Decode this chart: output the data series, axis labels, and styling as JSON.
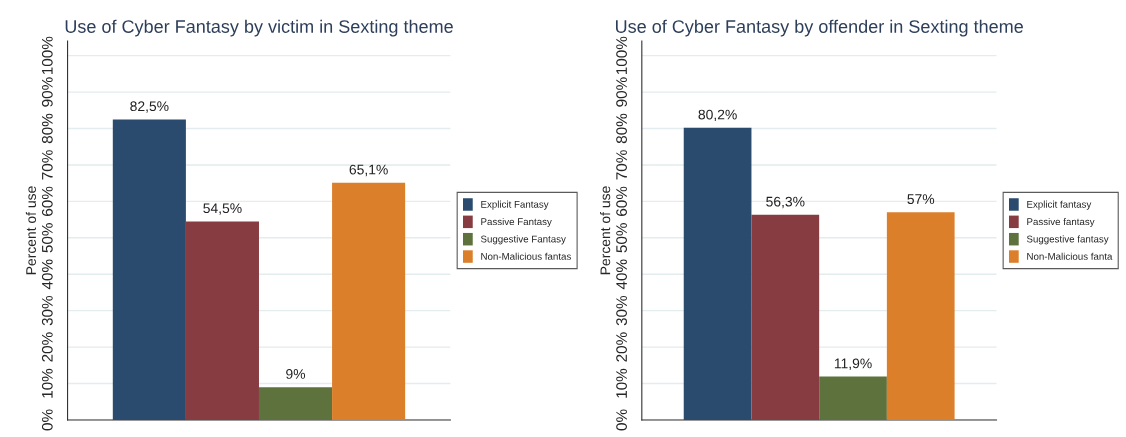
{
  "chart_data": [
    {
      "type": "bar",
      "title": "Use of Cyber Fantasy by victim in Sexting theme",
      "ylabel": "Percent of use",
      "categories": [
        null
      ],
      "series": [
        {
          "name": "Explicit Fantasy",
          "color": "#2a4a6e",
          "values": [
            82.5
          ],
          "value_labels": [
            "82,5%"
          ]
        },
        {
          "name": "Passive Fantasy",
          "color": "#873c41",
          "values": [
            54.5
          ],
          "value_labels": [
            "54,5%"
          ]
        },
        {
          "name": "Suggestive Fantasy",
          "color": "#5e723d",
          "values": [
            9
          ],
          "value_labels": [
            "9%"
          ]
        },
        {
          "name": "Non-Malicious fantas",
          "color": "#db7f2b",
          "values": [
            65.1
          ],
          "value_labels": [
            "65,1%"
          ]
        }
      ],
      "ylim": [
        0,
        104
      ],
      "yticks": [
        {
          "value": 0,
          "label": "0%"
        },
        {
          "value": 10,
          "label": "10%"
        },
        {
          "value": 20,
          "label": "20%"
        },
        {
          "value": 30,
          "label": "30%"
        },
        {
          "value": 40,
          "label": "40%"
        },
        {
          "value": 50,
          "label": "50%"
        },
        {
          "value": 60,
          "label": "60%"
        },
        {
          "value": 70,
          "label": "70%"
        },
        {
          "value": 80,
          "label": "80%"
        },
        {
          "value": 90,
          "label": "90%"
        },
        {
          "value": 100,
          "label": "100%"
        }
      ],
      "grid": "y",
      "legend": "right"
    },
    {
      "type": "bar",
      "title": "Use of Cyber Fantasy by offender in Sexting theme",
      "ylabel": "Percent of use",
      "categories": [
        null
      ],
      "series": [
        {
          "name": "Explicit fantasy",
          "color": "#2a4a6e",
          "values": [
            80.2
          ],
          "value_labels": [
            "80,2%"
          ]
        },
        {
          "name": "Passive fantasy",
          "color": "#873c41",
          "values": [
            56.3
          ],
          "value_labels": [
            "56,3%"
          ]
        },
        {
          "name": "Suggestive fantasy",
          "color": "#5e723d",
          "values": [
            11.9
          ],
          "value_labels": [
            "11,9%"
          ]
        },
        {
          "name": "Non-Malicious fanta",
          "color": "#db7f2b",
          "values": [
            57
          ],
          "value_labels": [
            "57%"
          ]
        }
      ],
      "ylim": [
        0,
        104
      ],
      "yticks": [
        {
          "value": 0,
          "label": "0%"
        },
        {
          "value": 10,
          "label": "10%"
        },
        {
          "value": 20,
          "label": "20%"
        },
        {
          "value": 30,
          "label": "30%"
        },
        {
          "value": 40,
          "label": "40%"
        },
        {
          "value": 50,
          "label": "50%"
        },
        {
          "value": 60,
          "label": "60%"
        },
        {
          "value": 70,
          "label": "70%"
        },
        {
          "value": 80,
          "label": "80%"
        },
        {
          "value": 90,
          "label": "90%"
        },
        {
          "value": 100,
          "label": "100%"
        }
      ],
      "grid": "y",
      "legend": "right"
    }
  ]
}
